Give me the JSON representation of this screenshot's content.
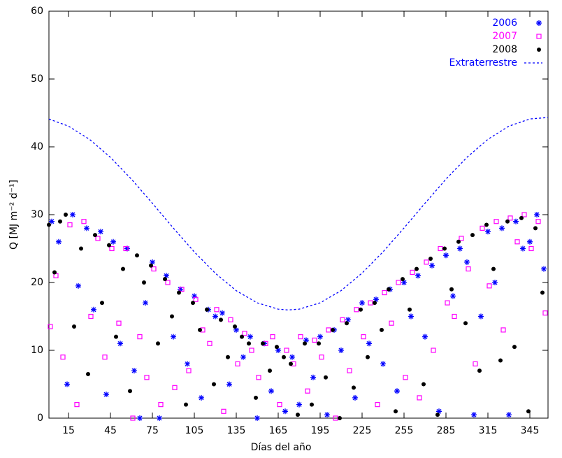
{
  "chart_data": {
    "type": "scatter",
    "xlabel": "Días del año",
    "ylabel": "Q  [MJ m⁻² d⁻¹]",
    "xlim": [
      1,
      358
    ],
    "ylim": [
      0,
      60
    ],
    "xticks": [
      15,
      45,
      75,
      105,
      135,
      165,
      195,
      225,
      255,
      285,
      315,
      345
    ],
    "yticks": [
      0,
      10,
      20,
      30,
      40,
      50,
      60
    ],
    "legend": "top-right",
    "series": [
      {
        "name": "2006",
        "color": "#0000ff",
        "marker": "asterisk",
        "x": [
          3,
          8,
          14,
          18,
          22,
          28,
          33,
          38,
          42,
          47,
          52,
          57,
          62,
          66,
          70,
          75,
          80,
          85,
          90,
          95,
          100,
          105,
          110,
          115,
          120,
          125,
          130,
          135,
          140,
          145,
          150,
          155,
          160,
          165,
          170,
          175,
          180,
          185,
          190,
          195,
          200,
          205,
          210,
          215,
          220,
          225,
          230,
          235,
          240,
          245,
          250,
          255,
          260,
          265,
          270,
          275,
          280,
          285,
          290,
          295,
          300,
          305,
          310,
          315,
          320,
          325,
          330,
          335,
          340,
          345,
          350,
          355
        ],
        "values": [
          29,
          26,
          5,
          30,
          19.5,
          28,
          16,
          27.5,
          3.5,
          26,
          11,
          25,
          7,
          0,
          17,
          23,
          0,
          21,
          12,
          19,
          8,
          18,
          3,
          16,
          15,
          15.5,
          5,
          13,
          9,
          12,
          0,
          11,
          4,
          10,
          1,
          9,
          2,
          11.5,
          6,
          12,
          0.5,
          13,
          10,
          14.5,
          3,
          17,
          11,
          17.5,
          8,
          19,
          4,
          20,
          15,
          21,
          12,
          22.5,
          1,
          24,
          18,
          25,
          23,
          0.5,
          15,
          27.5,
          20,
          28,
          0.5,
          29,
          25,
          26,
          30,
          22
        ]
      },
      {
        "name": "2007",
        "color": "#ff00ff",
        "marker": "square",
        "x": [
          2,
          6,
          11,
          16,
          21,
          26,
          31,
          36,
          41,
          46,
          51,
          56,
          61,
          66,
          71,
          76,
          81,
          86,
          91,
          96,
          101,
          106,
          111,
          116,
          121,
          126,
          131,
          136,
          141,
          146,
          151,
          156,
          161,
          166,
          171,
          176,
          181,
          186,
          191,
          196,
          201,
          206,
          211,
          216,
          221,
          226,
          231,
          236,
          241,
          246,
          251,
          256,
          261,
          266,
          271,
          276,
          281,
          286,
          291,
          296,
          301,
          306,
          311,
          316,
          321,
          326,
          331,
          336,
          341,
          346,
          351,
          356
        ],
        "values": [
          13.5,
          21,
          9,
          28.5,
          2,
          29,
          15,
          26.5,
          9,
          25,
          14,
          25,
          0,
          12,
          6,
          22,
          2,
          20,
          4.5,
          19,
          7,
          17.5,
          13,
          11,
          16,
          1,
          14.5,
          8,
          12.5,
          10,
          6,
          11,
          12,
          2,
          10,
          8,
          12,
          4,
          11.5,
          9,
          13,
          0,
          14.5,
          7,
          16,
          12,
          17,
          2,
          18.5,
          14,
          20,
          6,
          21.5,
          3,
          23,
          10,
          25,
          17,
          15,
          26.5,
          22,
          8,
          28,
          19.5,
          29,
          13,
          29.5,
          26,
          30,
          25,
          29,
          15.5
        ]
      },
      {
        "name": "2008",
        "color": "#000000",
        "marker": "dot",
        "x": [
          1,
          5,
          9,
          13,
          19,
          24,
          29,
          34,
          39,
          44,
          49,
          54,
          59,
          64,
          69,
          74,
          79,
          84,
          89,
          94,
          99,
          104,
          109,
          114,
          119,
          124,
          129,
          134,
          139,
          144,
          149,
          154,
          159,
          164,
          169,
          174,
          179,
          184,
          189,
          194,
          199,
          204,
          209,
          214,
          219,
          224,
          229,
          234,
          239,
          244,
          249,
          254,
          259,
          264,
          269,
          274,
          279,
          284,
          289,
          294,
          299,
          304,
          309,
          314,
          319,
          324,
          329,
          334,
          339,
          344,
          349,
          354
        ],
        "values": [
          28.5,
          21.5,
          29,
          30,
          13.5,
          25,
          6.5,
          27,
          17,
          25.5,
          12,
          22,
          4,
          24,
          20,
          22.5,
          11,
          20.5,
          15,
          18.5,
          2,
          17,
          13,
          16,
          5,
          14.5,
          9,
          13.5,
          12,
          11,
          3,
          11,
          7,
          10.5,
          9,
          8,
          0.5,
          11,
          2,
          11,
          6,
          13,
          0,
          14,
          4.5,
          16,
          9,
          17,
          13,
          19,
          1,
          20.5,
          16,
          22,
          5,
          23.5,
          0.5,
          25,
          19,
          26,
          14,
          27,
          7,
          28.5,
          22,
          8.5,
          29,
          10.5,
          29.5,
          1,
          28,
          18.5
        ]
      },
      {
        "name": "Extraterrestre",
        "color": "#0000ff",
        "marker": "dashed-line",
        "x": [
          1,
          15,
          30,
          45,
          60,
          75,
          90,
          105,
          120,
          135,
          150,
          165,
          172,
          180,
          195,
          210,
          225,
          240,
          255,
          270,
          285,
          300,
          315,
          330,
          345,
          358
        ],
        "values": [
          44.1,
          43.05,
          41.11,
          38.45,
          35.24,
          31.68,
          28.02,
          24.51,
          21.37,
          18.79,
          17.0,
          16.07,
          15.95,
          16.07,
          17.0,
          18.8,
          21.39,
          24.52,
          28.04,
          31.68,
          35.24,
          38.45,
          41.11,
          43.05,
          44.11,
          44.33
        ]
      }
    ]
  }
}
